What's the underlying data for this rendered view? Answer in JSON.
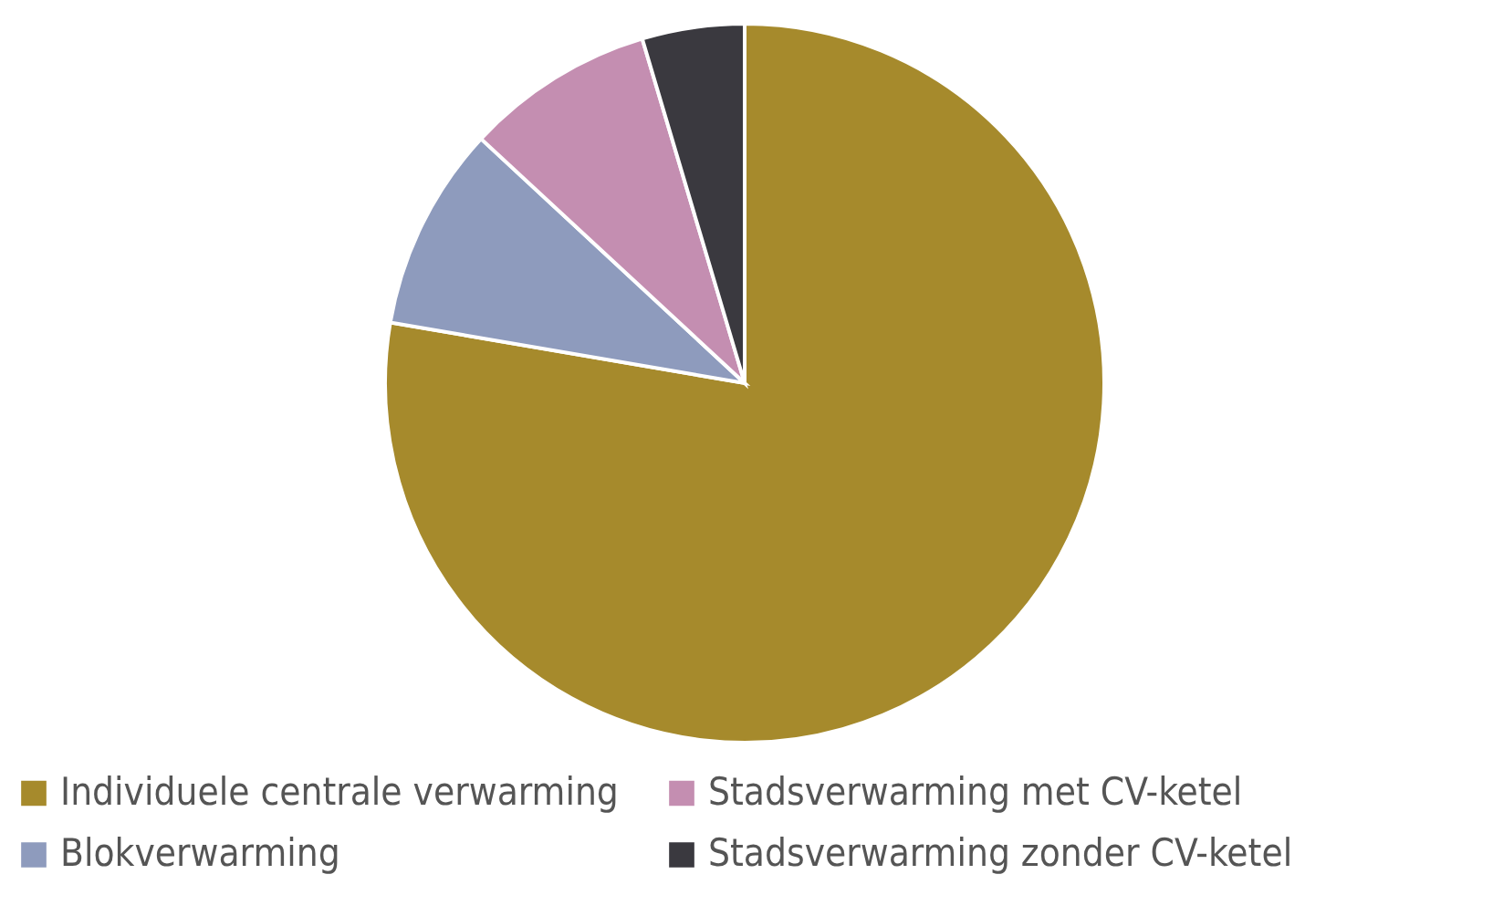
{
  "chart_data": {
    "type": "pie",
    "categories": [
      "Individuele centrale verwarming",
      "Blokverwarming",
      "Stadsverwarming met CV-ketel",
      "Stadsverwarming zonder CV-ketel"
    ],
    "values": [
      77.7,
      9.2,
      8.5,
      4.6
    ],
    "colors": [
      "#a68a2c",
      "#8e9bbd",
      "#c48eb1",
      "#3a393f"
    ],
    "legend": "bottom"
  }
}
